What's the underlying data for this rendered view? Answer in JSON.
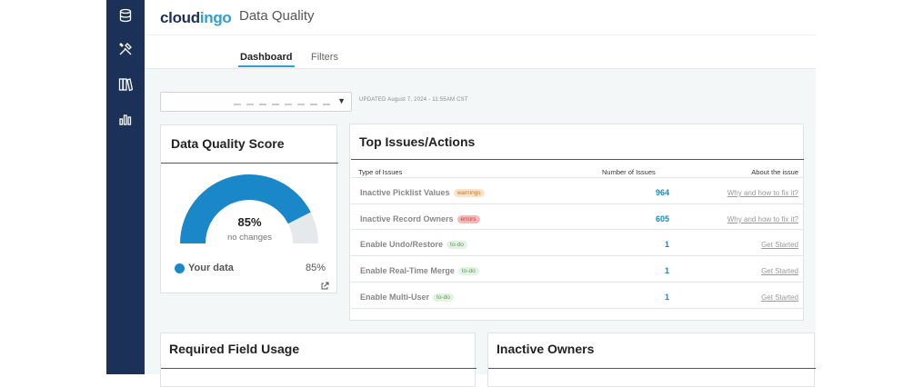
{
  "sidebar": {
    "icons": [
      "database-icon",
      "tools-icon",
      "books-icon",
      "bar-chart-icon"
    ]
  },
  "header": {
    "logo_main": "cloud",
    "logo_accent": "ingo",
    "title": "Data Quality"
  },
  "tabs": [
    {
      "label": "Dashboard",
      "active": true
    },
    {
      "label": "Filters",
      "active": false
    }
  ],
  "org_select": {
    "caret": "▼"
  },
  "updated": "UPDATED August 7, 2024 - 11:55AM CST",
  "score_card": {
    "title": "Data Quality Score",
    "percent": "85%",
    "change": "no changes",
    "legend_label": "Your data",
    "legend_value": "85%"
  },
  "chart_data": {
    "type": "gauge",
    "value": 85,
    "max": 100,
    "color_fill": "#1a87c9",
    "color_track": "#e6e9eb"
  },
  "issues": {
    "title": "Top Issues/Actions",
    "columns": [
      "Type of Issues",
      "Number of Issues",
      "About the issue"
    ],
    "rows": [
      {
        "name": "Inactive Picklist Values",
        "badge": "warnings",
        "badge_type": "warn",
        "count": "964",
        "link": "Why and how to fix it?"
      },
      {
        "name": "Inactive Record Owners",
        "badge": "errors",
        "badge_type": "err",
        "count": "605",
        "link": "Why and how to fix it?"
      },
      {
        "name": "Enable Undo/Restore",
        "badge": "to-do",
        "badge_type": "todo",
        "count": "1",
        "link": "Get Started"
      },
      {
        "name": "Enable Real-Time Merge",
        "badge": "to-do",
        "badge_type": "todo",
        "count": "1",
        "link": "Get Started"
      },
      {
        "name": "Enable Multi-User",
        "badge": "to-do",
        "badge_type": "todo",
        "count": "1",
        "link": "Get Started"
      }
    ]
  },
  "bottom_cards": {
    "left_title": "Required Field Usage",
    "right_title": "Inactive Owners"
  },
  "colors": {
    "sidebar": "#1b3157",
    "accent": "#2e9fd6",
    "link_number": "#1a87c9"
  }
}
